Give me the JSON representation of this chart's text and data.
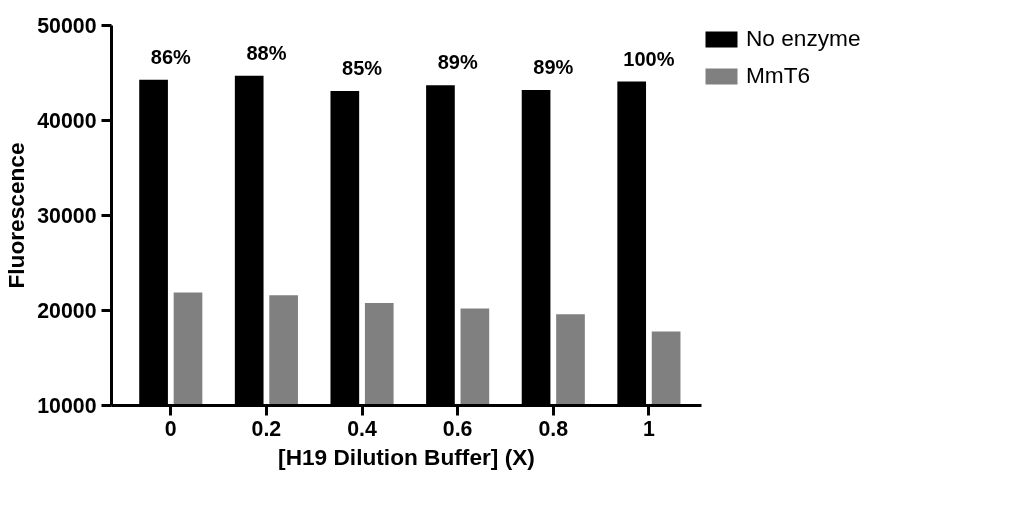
{
  "chart_data": {
    "type": "bar",
    "xlabel": "[H19 Dilution Buffer] (X)",
    "ylabel": "Fluorescence",
    "categories": [
      "0",
      "0.2",
      "0.4",
      "0.6",
      "0.8",
      "1"
    ],
    "series": [
      {
        "name": "No enzyme",
        "color": "#000000",
        "values": [
          44300,
          44700,
          43100,
          43700,
          43200,
          44100
        ]
      },
      {
        "name": "MmT6",
        "color": "#808080",
        "values": [
          21900,
          21600,
          20800,
          20200,
          19600,
          17800
        ]
      }
    ],
    "ylim": [
      10000,
      50000
    ],
    "yticks": [
      10000,
      20000,
      30000,
      40000,
      50000
    ],
    "grid": false,
    "legend": "top right",
    "annotations": [
      {
        "text": "86%",
        "x": "0",
        "y": 44300
      },
      {
        "text": "88%",
        "x": "0.2",
        "y": 44700
      },
      {
        "text": "85%",
        "x": "0.4",
        "y": 43100
      },
      {
        "text": "89%",
        "x": "0.6",
        "y": 43700
      },
      {
        "text": "89%",
        "x": "0.8",
        "y": 43200
      },
      {
        "text": "100%",
        "x": "1",
        "y": 44100
      }
    ]
  }
}
